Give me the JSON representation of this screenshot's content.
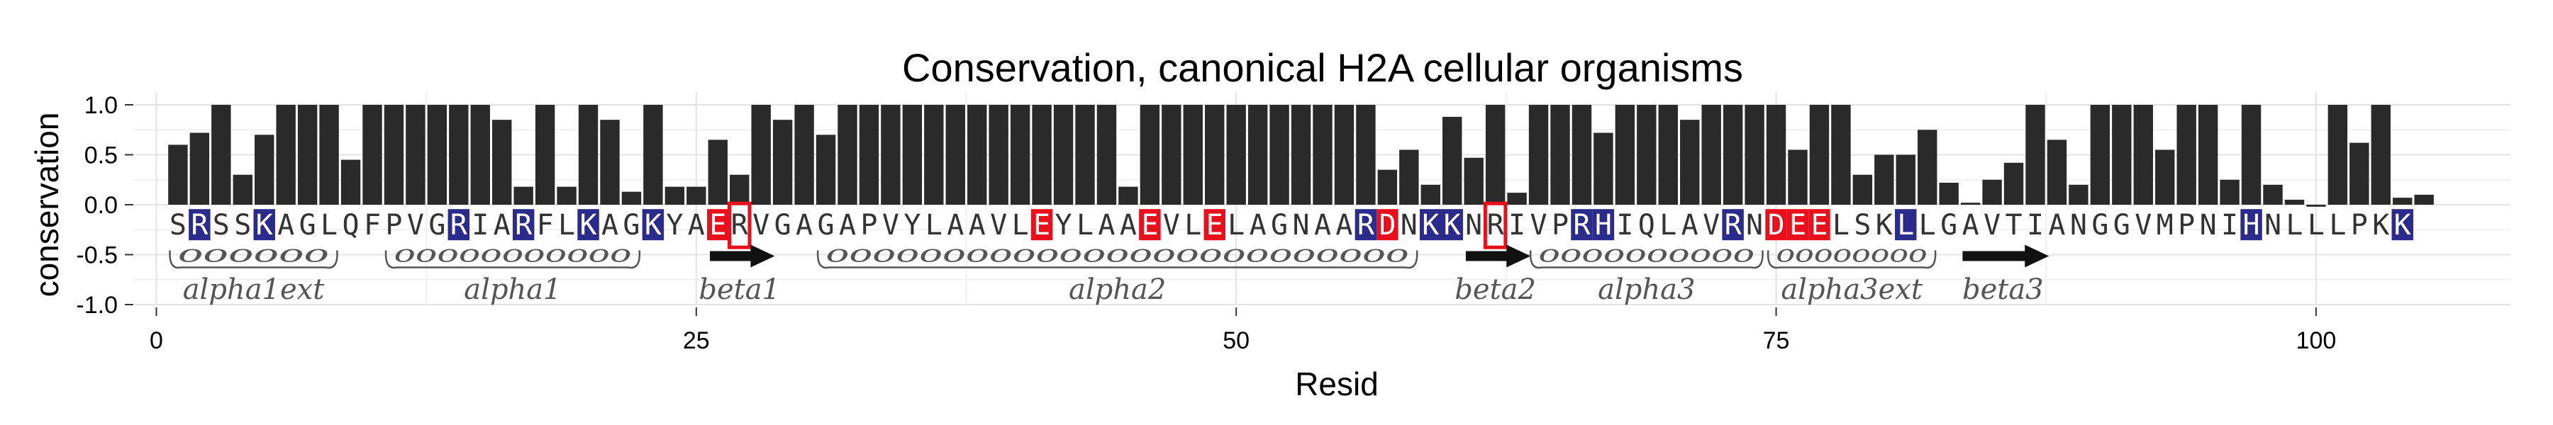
{
  "chart_data": {
    "type": "bar",
    "title": "Conservation, canonical H2A cellular organisms",
    "xlabel": "Resid",
    "ylabel": "conservation",
    "xlim": [
      -1,
      109
    ],
    "ylim": [
      -1.0,
      1.0
    ],
    "x_ticks": [
      0,
      25,
      50,
      75,
      100
    ],
    "y_ticks": [
      1.0,
      0.5,
      0.0,
      -0.5,
      -1.0
    ],
    "y_tick_labels": [
      "1.0",
      "0.5",
      "0.0",
      "-0.5",
      "-1.0"
    ],
    "grid": true,
    "bar_color": "#2a2a2a",
    "x": [
      1,
      2,
      3,
      4,
      5,
      6,
      7,
      8,
      9,
      10,
      11,
      12,
      13,
      14,
      15,
      16,
      17,
      18,
      19,
      20,
      21,
      22,
      23,
      24,
      25,
      26,
      27,
      28,
      29,
      30,
      31,
      32,
      33,
      34,
      35,
      36,
      37,
      38,
      39,
      40,
      41,
      42,
      43,
      44,
      45,
      46,
      47,
      48,
      49,
      50,
      51,
      52,
      53,
      54,
      55,
      56,
      57,
      58,
      59,
      60,
      61,
      62,
      63,
      64,
      65,
      66,
      67,
      68,
      69,
      70,
      71,
      72,
      73,
      74,
      75,
      76,
      77,
      78,
      79,
      80,
      81,
      82,
      83,
      84,
      85,
      86,
      87,
      88,
      89,
      90,
      91,
      92,
      93,
      94,
      95,
      96,
      97,
      98,
      99,
      100,
      101,
      102,
      103,
      104,
      105
    ],
    "values": [
      0.6,
      0.72,
      1.0,
      0.3,
      0.7,
      1.0,
      1.0,
      1.0,
      0.45,
      1.0,
      1.0,
      1.0,
      1.0,
      1.0,
      1.0,
      0.85,
      0.18,
      1.0,
      0.18,
      1.0,
      0.85,
      0.13,
      1.0,
      0.18,
      0.18,
      0.65,
      0.3,
      1.0,
      0.85,
      1.0,
      0.7,
      1.0,
      1.0,
      1.0,
      1.0,
      1.0,
      1.0,
      1.0,
      1.0,
      1.0,
      1.0,
      1.0,
      1.0,
      1.0,
      0.18,
      1.0,
      1.0,
      1.0,
      1.0,
      1.0,
      1.0,
      1.0,
      1.0,
      1.0,
      1.0,
      1.0,
      0.35,
      0.55,
      0.2,
      0.88,
      0.47,
      1.0,
      0.12,
      1.0,
      1.0,
      1.0,
      0.72,
      1.0,
      1.0,
      1.0,
      0.85,
      1.0,
      1.0,
      1.0,
      1.0,
      0.55,
      1.0,
      1.0,
      0.3,
      0.5,
      0.5,
      0.75,
      0.22,
      0.02,
      0.25,
      0.42,
      1.0,
      0.65,
      0.2,
      1.0,
      1.0,
      1.0,
      0.55,
      1.0,
      1.0,
      0.25,
      1.0,
      0.2,
      0.05,
      -0.02,
      1.0,
      0.62,
      1.0,
      0.07,
      0.1
    ],
    "sequence": [
      "S",
      "R",
      "S",
      "S",
      "K",
      "A",
      "G",
      "L",
      "Q",
      "F",
      "P",
      "V",
      "G",
      "R",
      "I",
      "A",
      "R",
      "F",
      "L",
      "K",
      "A",
      "G",
      "K",
      "Y",
      "A",
      "E",
      "R",
      "V",
      "G",
      "A",
      "G",
      "A",
      "P",
      "V",
      "Y",
      "L",
      "A",
      "A",
      "V",
      "L",
      "E",
      "Y",
      "L",
      "A",
      "A",
      "E",
      "V",
      "L",
      "E",
      "L",
      "A",
      "G",
      "N",
      "A",
      "A",
      "R",
      "D",
      "N",
      "K",
      "K",
      "N",
      "R",
      "I",
      "V",
      "P",
      "R",
      "H",
      "I",
      "Q",
      "L",
      "A",
      "V",
      "R",
      "N",
      "D",
      "E",
      "E",
      "L",
      "S",
      "K",
      "L",
      "L",
      "G",
      "A",
      "V",
      "T",
      "I",
      "A",
      "N",
      "G",
      "G",
      "V",
      "M",
      "P",
      "N",
      "I",
      "H",
      "N",
      "L",
      "L",
      "L",
      "P",
      "K",
      "K"
    ],
    "residue_highlight": {
      "positive": [
        2,
        5,
        14,
        17,
        20,
        23,
        56,
        59,
        60,
        66,
        67,
        73,
        81,
        97,
        104,
        105
      ],
      "negative": [
        26,
        41,
        46,
        49,
        57,
        75,
        76,
        77
      ],
      "boxed": [
        27,
        62
      ]
    },
    "colors": {
      "positive": "#2b2b8c",
      "negative": "#e8101c",
      "box": "#e8101c",
      "letter": "#333333"
    },
    "secondary_structure": [
      {
        "label": "alpha1ext",
        "type": "helix",
        "coil": "oooooo",
        "start": 1,
        "end": 8
      },
      {
        "label": "alpha1",
        "type": "helix",
        "coil": "ooooooooooo",
        "start": 11,
        "end": 22
      },
      {
        "label": "beta1",
        "type": "strand",
        "start": 26,
        "end": 28
      },
      {
        "label": "alpha2",
        "type": "helix",
        "coil": "ooooooooooooooooooooooooo",
        "start": 31,
        "end": 58
      },
      {
        "label": "beta2",
        "type": "strand",
        "start": 61,
        "end": 63
      },
      {
        "label": "alpha3",
        "type": "helix",
        "coil": "oooooooooo",
        "start": 64,
        "end": 74
      },
      {
        "label": "alpha3ext",
        "type": "helix",
        "coil": "oooooooo",
        "start": 75,
        "end": 82
      },
      {
        "label": "beta3",
        "type": "strand",
        "start": 84,
        "end": 87
      }
    ]
  }
}
